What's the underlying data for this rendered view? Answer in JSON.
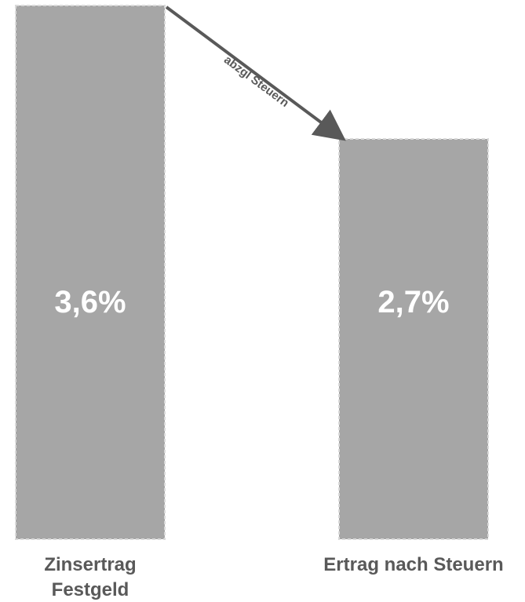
{
  "chart_data": {
    "type": "bar",
    "categories": [
      "Zinsertrag Festgeld",
      "Ertrag nach Steuern"
    ],
    "category_lines": [
      [
        "Zinsertrag",
        "Festgeld"
      ],
      [
        "Ertrag nach Steuern"
      ]
    ],
    "values": [
      3.6,
      2.7
    ],
    "data_labels": [
      "3,6%",
      "2,7%"
    ],
    "unit": "%",
    "title": "",
    "xlabel": "",
    "ylabel": "",
    "ylim": [
      0,
      3.6
    ],
    "grid": false,
    "legend": "none",
    "annotation": {
      "text": "abzgl Steuern",
      "from_category": 0,
      "to_category": 1
    },
    "colors": {
      "bar": "#a6a6a6",
      "bar_outline": "#d9d9d9",
      "arrow": "#595959",
      "label_text": "#595959",
      "value_text": "#ffffff"
    }
  }
}
